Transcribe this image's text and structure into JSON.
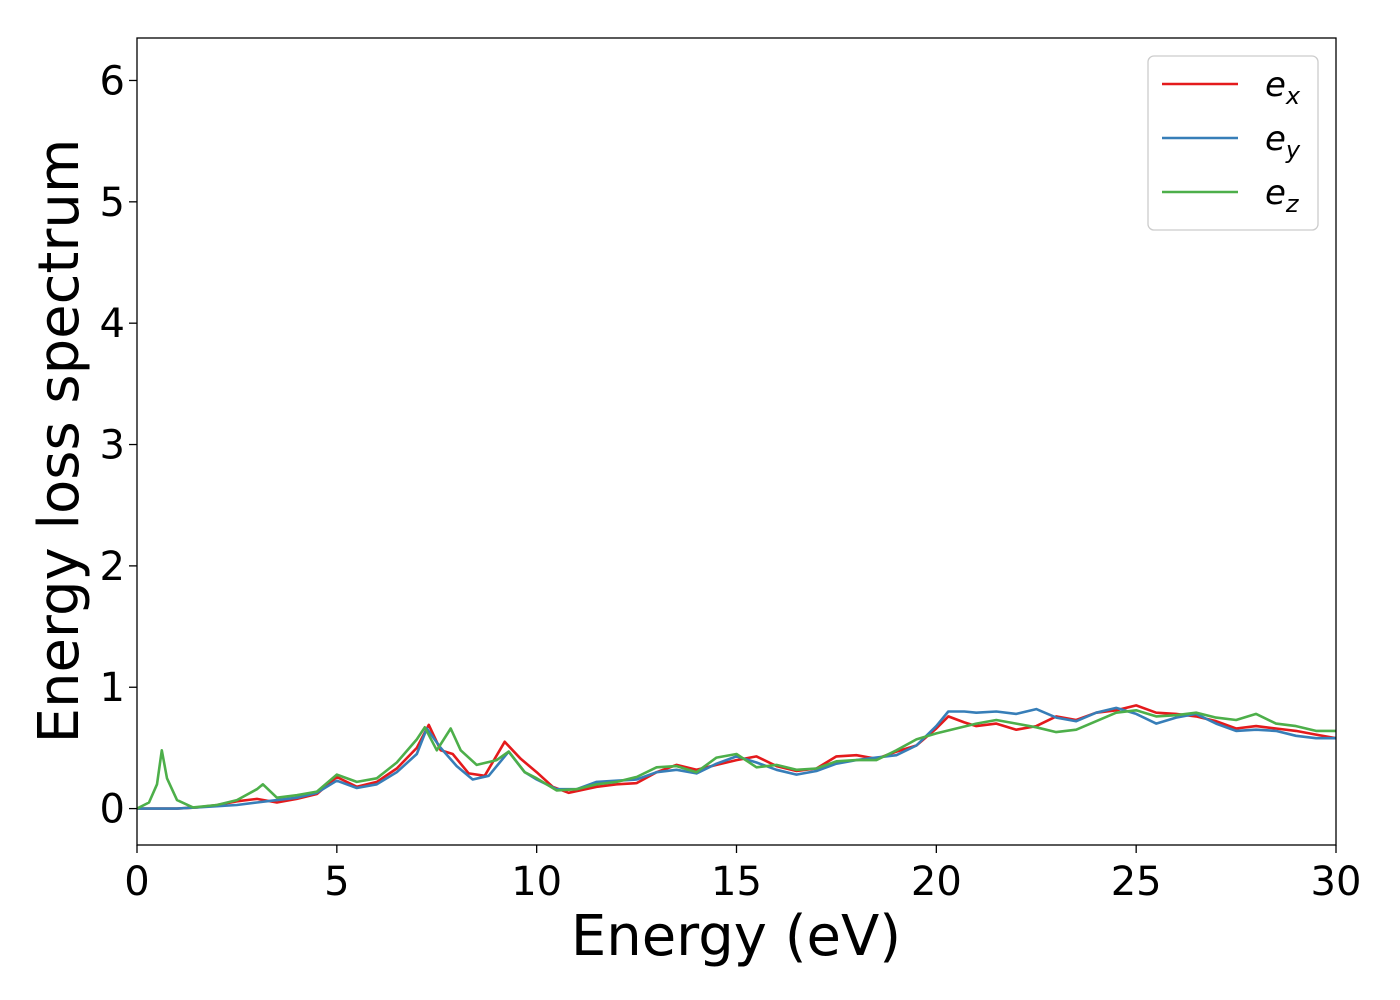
{
  "chart_data": {
    "type": "line",
    "xlabel": "Energy (eV)",
    "ylabel": "Energy loss spectrum",
    "xlim": [
      0,
      30
    ],
    "ylim": [
      -0.3,
      6.35
    ],
    "xticks": [
      "0",
      "5",
      "10",
      "15",
      "20",
      "25",
      "30"
    ],
    "yticks": [
      "0",
      "1",
      "2",
      "3",
      "4",
      "5",
      "6"
    ],
    "grid": false,
    "legend_position": "top-right",
    "series": [
      {
        "name": "e_x",
        "label_main": "e",
        "label_sub": "x",
        "color": "#e41a1c",
        "points": [
          [
            0,
            0
          ],
          [
            1,
            0
          ],
          [
            1.5,
            0.01
          ],
          [
            2,
            0.03
          ],
          [
            2.5,
            0.06
          ],
          [
            3,
            0.08
          ],
          [
            3.5,
            0.05
          ],
          [
            4,
            0.08
          ],
          [
            4.5,
            0.12
          ],
          [
            5,
            0.26
          ],
          [
            5.5,
            0.18
          ],
          [
            6,
            0.22
          ],
          [
            6.5,
            0.33
          ],
          [
            7,
            0.5
          ],
          [
            7.3,
            0.69
          ],
          [
            7.6,
            0.48
          ],
          [
            7.9,
            0.45
          ],
          [
            8.3,
            0.29
          ],
          [
            8.7,
            0.27
          ],
          [
            9.2,
            0.55
          ],
          [
            9.6,
            0.41
          ],
          [
            10,
            0.3
          ],
          [
            10.4,
            0.18
          ],
          [
            10.8,
            0.13
          ],
          [
            11.5,
            0.18
          ],
          [
            12,
            0.2
          ],
          [
            12.5,
            0.21
          ],
          [
            13,
            0.3
          ],
          [
            13.5,
            0.36
          ],
          [
            14,
            0.32
          ],
          [
            14.5,
            0.36
          ],
          [
            15,
            0.4
          ],
          [
            15.5,
            0.43
          ],
          [
            16,
            0.35
          ],
          [
            16.5,
            0.31
          ],
          [
            17,
            0.33
          ],
          [
            17.5,
            0.43
          ],
          [
            18,
            0.44
          ],
          [
            18.5,
            0.41
          ],
          [
            19,
            0.47
          ],
          [
            19.5,
            0.52
          ],
          [
            20,
            0.66
          ],
          [
            20.3,
            0.76
          ],
          [
            20.7,
            0.71
          ],
          [
            21,
            0.68
          ],
          [
            21.5,
            0.7
          ],
          [
            22,
            0.65
          ],
          [
            22.5,
            0.68
          ],
          [
            23,
            0.76
          ],
          [
            23.5,
            0.73
          ],
          [
            24,
            0.79
          ],
          [
            24.5,
            0.81
          ],
          [
            25,
            0.85
          ],
          [
            25.5,
            0.79
          ],
          [
            26,
            0.78
          ],
          [
            26.5,
            0.76
          ],
          [
            27,
            0.72
          ],
          [
            27.5,
            0.66
          ],
          [
            28,
            0.68
          ],
          [
            28.5,
            0.66
          ],
          [
            29,
            0.64
          ],
          [
            29.5,
            0.61
          ],
          [
            30,
            0.58
          ]
        ]
      },
      {
        "name": "e_y",
        "label_main": "e",
        "label_sub": "y",
        "color": "#377eb8",
        "points": [
          [
            0,
            0
          ],
          [
            1,
            0
          ],
          [
            1.5,
            0.01
          ],
          [
            2,
            0.02
          ],
          [
            2.5,
            0.03
          ],
          [
            3,
            0.05
          ],
          [
            3.5,
            0.07
          ],
          [
            4,
            0.09
          ],
          [
            4.5,
            0.13
          ],
          [
            5,
            0.23
          ],
          [
            5.5,
            0.17
          ],
          [
            6,
            0.2
          ],
          [
            6.5,
            0.3
          ],
          [
            7,
            0.45
          ],
          [
            7.25,
            0.66
          ],
          [
            7.6,
            0.5
          ],
          [
            8,
            0.35
          ],
          [
            8.4,
            0.24
          ],
          [
            8.8,
            0.27
          ],
          [
            9.3,
            0.47
          ],
          [
            9.7,
            0.3
          ],
          [
            10,
            0.24
          ],
          [
            10.5,
            0.16
          ],
          [
            11,
            0.16
          ],
          [
            11.5,
            0.22
          ],
          [
            12,
            0.23
          ],
          [
            12.5,
            0.24
          ],
          [
            13,
            0.3
          ],
          [
            13.5,
            0.32
          ],
          [
            14,
            0.29
          ],
          [
            14.5,
            0.37
          ],
          [
            15,
            0.43
          ],
          [
            15.5,
            0.38
          ],
          [
            16,
            0.32
          ],
          [
            16.5,
            0.28
          ],
          [
            17,
            0.31
          ],
          [
            17.5,
            0.37
          ],
          [
            18,
            0.4
          ],
          [
            18.5,
            0.42
          ],
          [
            19,
            0.44
          ],
          [
            19.5,
            0.52
          ],
          [
            20,
            0.68
          ],
          [
            20.3,
            0.8
          ],
          [
            20.7,
            0.8
          ],
          [
            21,
            0.79
          ],
          [
            21.5,
            0.8
          ],
          [
            22,
            0.78
          ],
          [
            22.5,
            0.82
          ],
          [
            23,
            0.75
          ],
          [
            23.5,
            0.72
          ],
          [
            24,
            0.79
          ],
          [
            24.5,
            0.83
          ],
          [
            25,
            0.78
          ],
          [
            25.5,
            0.7
          ],
          [
            26,
            0.75
          ],
          [
            26.5,
            0.78
          ],
          [
            27,
            0.7
          ],
          [
            27.5,
            0.64
          ],
          [
            28,
            0.65
          ],
          [
            28.5,
            0.64
          ],
          [
            29,
            0.6
          ],
          [
            29.5,
            0.58
          ],
          [
            30,
            0.58
          ]
        ]
      },
      {
        "name": "e_z",
        "label_main": "e",
        "label_sub": "z",
        "color": "#4daf4a",
        "points": [
          [
            0,
            0
          ],
          [
            0.3,
            0.05
          ],
          [
            0.5,
            0.2
          ],
          [
            0.62,
            0.48
          ],
          [
            0.75,
            0.25
          ],
          [
            1,
            0.07
          ],
          [
            1.4,
            0.01
          ],
          [
            2,
            0.03
          ],
          [
            2.5,
            0.07
          ],
          [
            3,
            0.16
          ],
          [
            3.15,
            0.2
          ],
          [
            3.5,
            0.09
          ],
          [
            4,
            0.11
          ],
          [
            4.5,
            0.14
          ],
          [
            5,
            0.28
          ],
          [
            5.5,
            0.22
          ],
          [
            6,
            0.25
          ],
          [
            6.5,
            0.38
          ],
          [
            7,
            0.57
          ],
          [
            7.2,
            0.67
          ],
          [
            7.5,
            0.48
          ],
          [
            7.85,
            0.66
          ],
          [
            8.1,
            0.48
          ],
          [
            8.5,
            0.36
          ],
          [
            9,
            0.4
          ],
          [
            9.3,
            0.47
          ],
          [
            9.7,
            0.3
          ],
          [
            10,
            0.25
          ],
          [
            10.5,
            0.15
          ],
          [
            11,
            0.16
          ],
          [
            11.5,
            0.2
          ],
          [
            12,
            0.22
          ],
          [
            12.5,
            0.26
          ],
          [
            13,
            0.34
          ],
          [
            13.5,
            0.35
          ],
          [
            14,
            0.3
          ],
          [
            14.5,
            0.42
          ],
          [
            15,
            0.45
          ],
          [
            15.5,
            0.34
          ],
          [
            16,
            0.36
          ],
          [
            16.5,
            0.32
          ],
          [
            17,
            0.33
          ],
          [
            17.5,
            0.39
          ],
          [
            18,
            0.4
          ],
          [
            18.5,
            0.4
          ],
          [
            19,
            0.48
          ],
          [
            19.5,
            0.57
          ],
          [
            20,
            0.62
          ],
          [
            20.5,
            0.66
          ],
          [
            21,
            0.7
          ],
          [
            21.5,
            0.73
          ],
          [
            22,
            0.7
          ],
          [
            22.5,
            0.67
          ],
          [
            23,
            0.63
          ],
          [
            23.5,
            0.65
          ],
          [
            24,
            0.72
          ],
          [
            24.5,
            0.79
          ],
          [
            25,
            0.81
          ],
          [
            25.5,
            0.76
          ],
          [
            26,
            0.77
          ],
          [
            26.5,
            0.79
          ],
          [
            27,
            0.75
          ],
          [
            27.5,
            0.73
          ],
          [
            28,
            0.78
          ],
          [
            28.5,
            0.7
          ],
          [
            29,
            0.68
          ],
          [
            29.5,
            0.64
          ],
          [
            30,
            0.64
          ]
        ]
      }
    ]
  }
}
